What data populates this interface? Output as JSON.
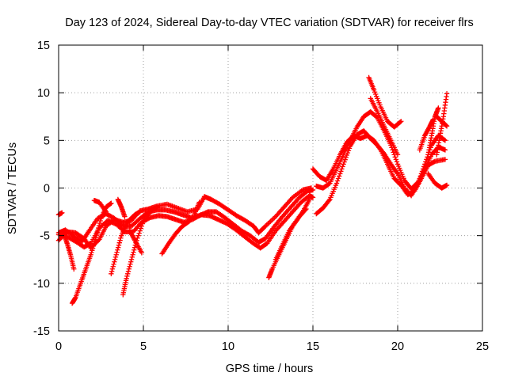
{
  "chart_data": {
    "type": "scatter",
    "title": "Day 123 of 2024, Sidereal Day-to-day VTEC variation (SDTVAR) for receiver flrs",
    "xlabel": "GPS time / hours",
    "ylabel": "SDTVAR / TECUs",
    "xlim": [
      0,
      25
    ],
    "ylim": [
      -15,
      15
    ],
    "xticks": [
      0,
      5,
      10,
      15,
      20,
      25
    ],
    "yticks": [
      -15,
      -10,
      -5,
      0,
      5,
      10,
      15
    ],
    "grid": true,
    "marker": "plus",
    "color": "#ff0000",
    "series": [
      {
        "points": [
          [
            0.0,
            -5.5
          ],
          [
            0.5,
            -4.6
          ],
          [
            1.0,
            -4.7
          ],
          [
            1.5,
            -5.3
          ],
          [
            1.9,
            -6.3
          ],
          [
            2.4,
            -5.4
          ],
          [
            2.8,
            -4.0
          ],
          [
            3.3,
            -3.3
          ],
          [
            3.8,
            -3.6
          ],
          [
            4.3,
            -3.4
          ],
          [
            4.8,
            -2.4
          ],
          [
            5.3,
            -2.2
          ],
          [
            5.8,
            -1.9
          ],
          [
            6.4,
            -1.7
          ],
          [
            7.0,
            -2.1
          ],
          [
            7.6,
            -2.5
          ],
          [
            8.2,
            -2.2
          ],
          [
            8.6,
            -0.9
          ],
          [
            9.0,
            -1.2
          ],
          [
            9.5,
            -1.7
          ],
          [
            10.0,
            -2.3
          ],
          [
            10.5,
            -2.9
          ],
          [
            11.0,
            -3.4
          ],
          [
            11.5,
            -4.0
          ],
          [
            11.8,
            -4.7
          ],
          [
            12.2,
            -4.0
          ],
          [
            12.8,
            -3.0
          ],
          [
            13.3,
            -2.0
          ],
          [
            13.8,
            -1.0
          ],
          [
            14.4,
            -0.2
          ],
          [
            14.9,
            0.0
          ]
        ]
      },
      {
        "points": [
          [
            0.0,
            -4.7
          ],
          [
            0.4,
            -4.4
          ],
          [
            0.9,
            -5.1
          ],
          [
            1.4,
            -5.6
          ],
          [
            1.8,
            -4.5
          ],
          [
            2.3,
            -3.2
          ],
          [
            2.8,
            -2.7
          ],
          [
            3.3,
            -3.2
          ],
          [
            3.8,
            -4.0
          ],
          [
            4.3,
            -4.0
          ],
          [
            4.8,
            -3.2
          ],
          [
            5.3,
            -2.5
          ],
          [
            5.8,
            -2.3
          ],
          [
            6.3,
            -2.3
          ],
          [
            6.8,
            -2.5
          ],
          [
            7.3,
            -2.8
          ],
          [
            7.8,
            -3.1
          ],
          [
            8.3,
            -2.9
          ],
          [
            8.8,
            -2.5
          ],
          [
            9.3,
            -2.5
          ],
          [
            9.8,
            -3.1
          ],
          [
            10.3,
            -3.8
          ],
          [
            10.8,
            -4.5
          ],
          [
            11.3,
            -5.0
          ],
          [
            11.8,
            -5.7
          ],
          [
            12.2,
            -5.3
          ],
          [
            12.7,
            -4.1
          ],
          [
            13.2,
            -3.0
          ],
          [
            13.7,
            -2.0
          ],
          [
            14.2,
            -1.0
          ],
          [
            14.7,
            -0.3
          ],
          [
            15.0,
            -0.2
          ]
        ]
      },
      {
        "points": [
          [
            0.0,
            -4.9
          ],
          [
            0.5,
            -5.1
          ],
          [
            1.0,
            -5.6
          ],
          [
            1.5,
            -6.2
          ],
          [
            1.9,
            -5.8
          ],
          [
            2.4,
            -4.2
          ],
          [
            2.9,
            -3.4
          ],
          [
            3.4,
            -3.8
          ],
          [
            3.9,
            -4.6
          ],
          [
            4.4,
            -4.6
          ],
          [
            4.9,
            -3.6
          ],
          [
            5.4,
            -3.1
          ],
          [
            5.9,
            -2.9
          ],
          [
            6.4,
            -3.0
          ],
          [
            6.9,
            -3.3
          ],
          [
            7.4,
            -3.6
          ],
          [
            7.9,
            -3.3
          ],
          [
            8.4,
            -2.8
          ],
          [
            8.9,
            -2.9
          ],
          [
            9.4,
            -3.3
          ],
          [
            9.9,
            -3.7
          ],
          [
            10.4,
            -4.3
          ],
          [
            10.9,
            -5.0
          ],
          [
            11.4,
            -5.7
          ],
          [
            11.9,
            -6.3
          ],
          [
            12.3,
            -5.8
          ],
          [
            12.8,
            -4.5
          ],
          [
            13.3,
            -3.5
          ],
          [
            13.8,
            -2.5
          ],
          [
            14.3,
            -1.5
          ],
          [
            14.8,
            -0.8
          ],
          [
            15.0,
            -1.0
          ]
        ]
      },
      {
        "points": [
          [
            0.0,
            -2.8
          ],
          [
            0.2,
            -2.6
          ]
        ]
      },
      {
        "points": [
          [
            0.3,
            -4.8
          ],
          [
            0.5,
            -5.8
          ],
          [
            0.7,
            -7.0
          ],
          [
            0.9,
            -8.5
          ]
        ]
      },
      {
        "points": [
          [
            0.8,
            -12.1
          ],
          [
            1.0,
            -11.5
          ],
          [
            1.3,
            -10.0
          ],
          [
            1.6,
            -8.5
          ],
          [
            1.9,
            -7.0
          ],
          [
            2.2,
            -5.2
          ],
          [
            2.5,
            -3.2
          ],
          [
            2.8,
            -2.0
          ],
          [
            3.1,
            -1.6
          ]
        ]
      },
      {
        "points": [
          [
            2.1,
            -1.3
          ],
          [
            2.4,
            -1.5
          ],
          [
            2.8,
            -2.5
          ]
        ]
      },
      {
        "points": [
          [
            3.1,
            -9.0
          ],
          [
            3.4,
            -7.0
          ],
          [
            3.7,
            -5.0
          ],
          [
            4.1,
            -3.5
          ],
          [
            4.5,
            -2.8
          ],
          [
            4.8,
            -2.5
          ]
        ]
      },
      {
        "points": [
          [
            3.5,
            -1.2
          ],
          [
            3.7,
            -2.0
          ],
          [
            3.9,
            -3.0
          ]
        ]
      },
      {
        "points": [
          [
            3.8,
            -11.2
          ],
          [
            4.0,
            -9.5
          ],
          [
            4.3,
            -7.5
          ],
          [
            4.6,
            -5.5
          ],
          [
            5.0,
            -3.5
          ],
          [
            5.4,
            -2.5
          ],
          [
            5.8,
            -2.0
          ]
        ]
      },
      {
        "points": [
          [
            4.2,
            -4.5
          ],
          [
            4.5,
            -5.5
          ],
          [
            4.9,
            -6.8
          ]
        ]
      },
      {
        "points": [
          [
            6.1,
            -6.9
          ],
          [
            6.5,
            -5.8
          ],
          [
            6.9,
            -4.8
          ],
          [
            7.3,
            -4.0
          ],
          [
            7.7,
            -3.5
          ]
        ]
      },
      {
        "points": [
          [
            8.0,
            -2.8
          ],
          [
            8.3,
            -1.5
          ]
        ]
      },
      {
        "points": [
          [
            12.4,
            -9.4
          ],
          [
            12.6,
            -8.5
          ],
          [
            13.0,
            -7.0
          ],
          [
            13.4,
            -5.5
          ],
          [
            13.8,
            -4.0
          ],
          [
            14.2,
            -3.0
          ],
          [
            14.6,
            -2.2
          ]
        ]
      },
      {
        "points": [
          [
            12.8,
            -7.5
          ],
          [
            13.2,
            -6.0
          ],
          [
            13.6,
            -4.5
          ],
          [
            14.0,
            -3.5
          ],
          [
            14.4,
            -2.5
          ],
          [
            14.8,
            -1.2
          ]
        ]
      },
      {
        "points": [
          [
            15.2,
            0.2
          ],
          [
            15.6,
            0.0
          ],
          [
            16.0,
            0.5
          ],
          [
            16.4,
            2.0
          ],
          [
            16.8,
            3.5
          ],
          [
            17.2,
            5.0
          ],
          [
            17.6,
            6.4
          ],
          [
            18.0,
            7.5
          ],
          [
            18.4,
            8.0
          ],
          [
            18.8,
            7.4
          ],
          [
            19.2,
            6.0
          ],
          [
            19.6,
            4.5
          ],
          [
            20.0,
            2.5
          ],
          [
            20.4,
            0.8
          ],
          [
            20.8,
            -0.1
          ],
          [
            21.2,
            0.6
          ],
          [
            21.6,
            2.0
          ],
          [
            22.0,
            3.5
          ],
          [
            22.4,
            4.3
          ],
          [
            22.8,
            4.0
          ]
        ]
      },
      {
        "points": [
          [
            15.0,
            2.0
          ],
          [
            15.4,
            1.2
          ],
          [
            15.8,
            0.8
          ],
          [
            16.2,
            2.0
          ],
          [
            16.6,
            3.5
          ],
          [
            17.0,
            4.8
          ],
          [
            17.4,
            5.5
          ],
          [
            17.8,
            5.2
          ],
          [
            18.2,
            5.5
          ],
          [
            18.6,
            5.0
          ],
          [
            19.0,
            4.0
          ],
          [
            19.4,
            2.5
          ],
          [
            19.8,
            1.0
          ],
          [
            20.2,
            0.3
          ],
          [
            20.6,
            -0.7
          ],
          [
            21.0,
            -0.3
          ],
          [
            21.4,
            1.0
          ],
          [
            21.8,
            2.4
          ],
          [
            22.2,
            2.8
          ],
          [
            22.8,
            3.0
          ]
        ]
      },
      {
        "points": [
          [
            15.2,
            -2.7
          ],
          [
            15.6,
            -2.1
          ],
          [
            16.0,
            -1.2
          ],
          [
            16.4,
            0.5
          ],
          [
            16.8,
            2.5
          ],
          [
            17.2,
            4.4
          ],
          [
            17.6,
            5.6
          ],
          [
            18.0,
            6.0
          ],
          [
            18.4,
            5.2
          ],
          [
            18.8,
            4.5
          ],
          [
            19.2,
            3.6
          ],
          [
            19.6,
            2.5
          ],
          [
            20.0,
            1.5
          ],
          [
            20.4,
            0.0
          ],
          [
            20.8,
            -0.8
          ],
          [
            21.2,
            0.5
          ],
          [
            21.6,
            2.5
          ],
          [
            22.0,
            4.5
          ],
          [
            22.4,
            5.5
          ],
          [
            22.8,
            5.0
          ]
        ]
      },
      {
        "points": [
          [
            18.3,
            11.6
          ],
          [
            18.6,
            10.3
          ],
          [
            19.0,
            8.5
          ],
          [
            19.4,
            7.0
          ],
          [
            19.8,
            6.4
          ],
          [
            20.2,
            7.0
          ]
        ]
      },
      {
        "points": [
          [
            18.4,
            9.4
          ],
          [
            18.8,
            8.0
          ],
          [
            19.2,
            6.5
          ],
          [
            19.6,
            5.0
          ],
          [
            20.0,
            3.5
          ]
        ]
      },
      {
        "points": [
          [
            21.5,
            1.5
          ],
          [
            21.8,
            3.5
          ],
          [
            22.0,
            5.5
          ],
          [
            22.2,
            7.5
          ],
          [
            22.4,
            8.4
          ]
        ]
      },
      {
        "points": [
          [
            21.3,
            4.0
          ],
          [
            21.6,
            5.5
          ],
          [
            21.9,
            6.5
          ],
          [
            22.1,
            7.2
          ]
        ]
      },
      {
        "points": [
          [
            22.3,
            3.5
          ],
          [
            22.5,
            5.5
          ],
          [
            22.7,
            7.5
          ],
          [
            22.9,
            9.9
          ]
        ]
      },
      {
        "points": [
          [
            21.8,
            1.5
          ],
          [
            22.2,
            0.5
          ],
          [
            22.6,
            0.0
          ],
          [
            22.9,
            0.3
          ]
        ]
      },
      {
        "points": [
          [
            22.3,
            7.5
          ],
          [
            22.6,
            7.0
          ],
          [
            22.9,
            6.5
          ]
        ]
      }
    ]
  }
}
